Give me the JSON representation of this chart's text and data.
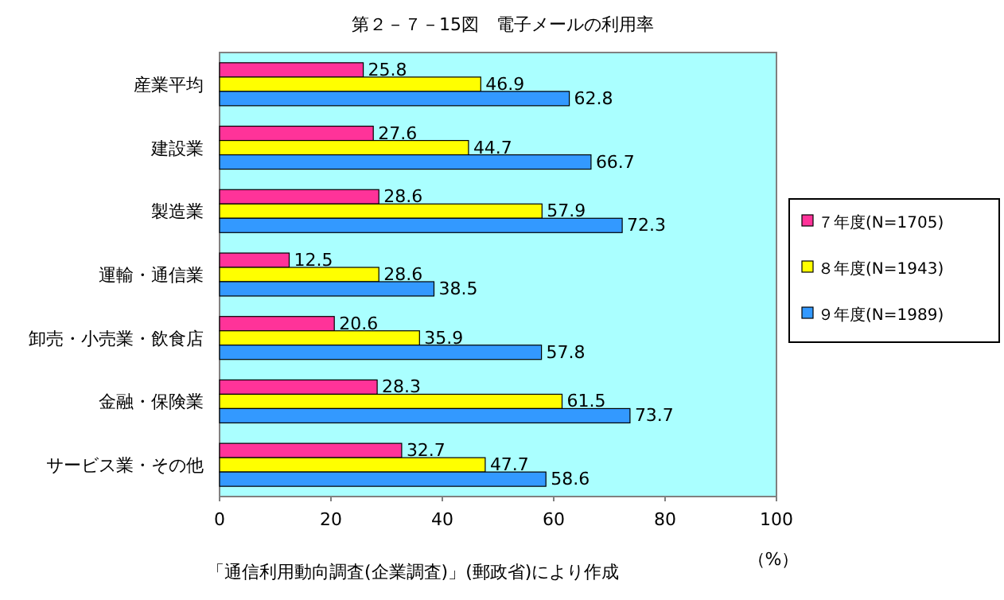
{
  "chart_data": {
    "type": "bar",
    "orientation": "horizontal",
    "title": "第２－７－15図　電子メールの利用率",
    "xlabel": "（%）",
    "categories": [
      "産業平均",
      "建設業",
      "製造業",
      "運輸・通信業",
      "卸売・小売業・飲食店",
      "金融・保険業",
      "サービス業・その他"
    ],
    "series": [
      {
        "name": "７年度(N=1705)",
        "color": "#ff3399",
        "values": [
          25.8,
          27.6,
          28.6,
          12.5,
          20.6,
          28.3,
          32.7
        ]
      },
      {
        "name": "８年度(N=1943)",
        "color": "#ffff00",
        "values": [
          46.9,
          44.7,
          57.9,
          28.6,
          35.9,
          61.5,
          47.7
        ]
      },
      {
        "name": "９年度(N=1989)",
        "color": "#3399ff",
        "values": [
          62.8,
          66.7,
          72.3,
          38.5,
          57.8,
          73.7,
          58.6
        ]
      }
    ],
    "xlim": [
      0,
      100
    ],
    "xticks": [
      0,
      20,
      40,
      60,
      80,
      100
    ],
    "data_labels": true,
    "legend": "right",
    "annotations": [
      "「通信利用動向調査(企業調査)」(郵政省)により作成"
    ]
  }
}
